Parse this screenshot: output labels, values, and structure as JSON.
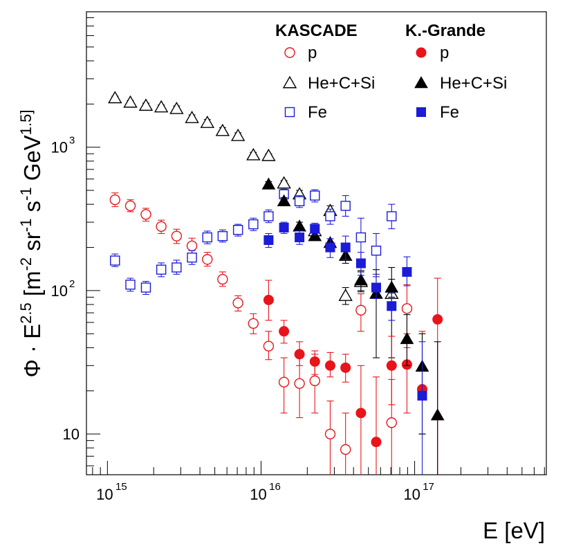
{
  "chart_data": {
    "type": "scatter",
    "title": "",
    "xlabel": "E [eV]",
    "ylabel": "Φ · E^2.5 [m^-2 sr^-1 s^-1 GeV^1.5]",
    "xscale": "log",
    "yscale": "log",
    "xlim": [
      730000000000000.0,
      7.2e+17
    ],
    "ylim": [
      5.2,
      8800
    ],
    "x_ticks": [
      {
        "label": "10",
        "exp": "15"
      },
      {
        "label": "10",
        "exp": "16"
      },
      {
        "label": "10",
        "exp": "17"
      }
    ],
    "y_ticks": [
      {
        "label": "10",
        "exp": ""
      },
      {
        "label": "10",
        "exp": "2"
      },
      {
        "label": "10",
        "exp": "3"
      }
    ],
    "legend_headers": [
      "KASCADE",
      "K.-Grande"
    ],
    "series": [
      {
        "name": "p",
        "experiment": "KASCADE",
        "marker": "circle-open",
        "color": "#e8141a",
        "points": [
          [
            1120000000000000.0,
            430,
            385,
            480
          ],
          [
            1410000000000000.0,
            390,
            355,
            430
          ],
          [
            1780000000000000.0,
            340,
            305,
            375
          ],
          [
            2240000000000000.0,
            280,
            250,
            310
          ],
          [
            2820000000000000.0,
            240,
            213,
            268
          ],
          [
            3550000000000000.0,
            205,
            182,
            232
          ],
          [
            4470000000000000.0,
            165,
            148,
            185
          ],
          [
            5620000000000000.0,
            120,
            107,
            135
          ],
          [
            7080000000000000.0,
            82,
            72,
            92
          ],
          [
            8910000000000000.0,
            59,
            50,
            69
          ],
          [
            1.12e+16,
            41,
            33,
            52
          ],
          [
            1.41e+16,
            23,
            14,
            34
          ],
          [
            1.78e+16,
            22.5,
            13,
            34
          ],
          [
            2.24e+16,
            23.5,
            14,
            36
          ],
          [
            2.82e+16,
            10,
            5.2,
            17
          ],
          [
            3.55e+16,
            7.8,
            5.2,
            14
          ],
          [
            4.47e+16,
            73,
            52,
            95
          ],
          [
            7.08e+16,
            12,
            5.2,
            24
          ],
          [
            8.91e+16,
            75,
            40,
            110
          ]
        ]
      },
      {
        "name": "He+C+Si",
        "experiment": "KASCADE",
        "marker": "triangle-open",
        "color": "#000000",
        "points": [
          [
            1120000000000000.0,
            2200,
            2140,
            2270
          ],
          [
            1410000000000000.0,
            2050,
            1980,
            2120
          ],
          [
            1780000000000000.0,
            1950,
            1880,
            2030
          ],
          [
            2240000000000000.0,
            1900,
            1830,
            1970
          ],
          [
            2820000000000000.0,
            1850,
            1770,
            1940
          ],
          [
            3550000000000000.0,
            1600,
            1530,
            1680
          ],
          [
            4470000000000000.0,
            1480,
            1410,
            1560
          ],
          [
            5620000000000000.0,
            1300,
            1230,
            1370
          ],
          [
            7080000000000000.0,
            1200,
            1150,
            1260
          ],
          [
            8910000000000000.0,
            880,
            845,
            920
          ],
          [
            1.12e+16,
            870,
            840,
            900
          ],
          [
            1.41e+16,
            560,
            535,
            585
          ],
          [
            1.78e+16,
            470,
            440,
            500
          ],
          [
            2.24e+16,
            260,
            238,
            285
          ],
          [
            2.82e+16,
            360,
            330,
            390
          ],
          [
            3.55e+16,
            92,
            80,
            105
          ],
          [
            4.47e+16,
            115,
            98,
            135
          ],
          [
            7.08e+16,
            95,
            34,
            145
          ]
        ]
      },
      {
        "name": "Fe",
        "experiment": "KASCADE",
        "marker": "square-open",
        "color": "#1b1bd8",
        "points": [
          [
            1120000000000000.0,
            162,
            147,
            180
          ],
          [
            1410000000000000.0,
            110,
            99,
            122
          ],
          [
            1780000000000000.0,
            105,
            94,
            116
          ],
          [
            2240000000000000.0,
            140,
            125,
            156
          ],
          [
            2820000000000000.0,
            145,
            130,
            163
          ],
          [
            3550000000000000.0,
            170,
            152,
            190
          ],
          [
            4470000000000000.0,
            235,
            212,
            260
          ],
          [
            5620000000000000.0,
            240,
            218,
            265
          ],
          [
            7080000000000000.0,
            265,
            240,
            290
          ],
          [
            8910000000000000.0,
            290,
            262,
            320
          ],
          [
            1.12e+16,
            330,
            298,
            365
          ],
          [
            1.41e+16,
            470,
            430,
            510
          ],
          [
            1.78e+16,
            420,
            380,
            460
          ],
          [
            2.24e+16,
            460,
            415,
            505
          ],
          [
            2.82e+16,
            330,
            290,
            370
          ],
          [
            3.55e+16,
            390,
            330,
            460
          ],
          [
            4.47e+16,
            235,
            150,
            320
          ],
          [
            5.62e+16,
            190,
            130,
            250
          ],
          [
            7.08e+16,
            330,
            270,
            400
          ]
        ]
      },
      {
        "name": "p",
        "experiment": "K.-Grande",
        "marker": "circle-filled",
        "color": "#e8141a",
        "points": [
          [
            1.12e+16,
            86,
            62,
            118
          ],
          [
            1.41e+16,
            52,
            43,
            62
          ],
          [
            1.78e+16,
            36,
            30,
            44
          ],
          [
            2.24e+16,
            32,
            26,
            38
          ],
          [
            2.82e+16,
            30,
            25,
            37
          ],
          [
            3.55e+16,
            29,
            23,
            36
          ],
          [
            4.47e+16,
            14,
            5.2,
            30
          ],
          [
            5.62e+16,
            8.8,
            5.2,
            25
          ],
          [
            7.08e+16,
            30,
            16,
            48
          ],
          [
            8.91e+16,
            30.5,
            14,
            50
          ],
          [
            1.12e+17,
            20.5,
            10,
            52
          ],
          [
            1.41e+17,
            63,
            5.2,
            122
          ]
        ]
      },
      {
        "name": "He+C+Si",
        "experiment": "K.-Grande",
        "marker": "triangle-filled",
        "color": "#000000",
        "points": [
          [
            1.12e+16,
            550,
            525,
            575
          ],
          [
            1.41e+16,
            420,
            400,
            445
          ],
          [
            1.78e+16,
            280,
            265,
            300
          ],
          [
            2.24e+16,
            240,
            225,
            255
          ],
          [
            2.82e+16,
            215,
            200,
            230
          ],
          [
            3.55e+16,
            175,
            155,
            195
          ],
          [
            4.47e+16,
            118,
            100,
            138
          ],
          [
            5.62e+16,
            95,
            34,
            140
          ],
          [
            7.08e+16,
            105,
            90,
            120
          ],
          [
            8.91e+16,
            46,
            30,
            68
          ],
          [
            1.12e+17,
            29.5,
            10,
            50
          ],
          [
            1.41e+17,
            13.5,
            5.2,
            44
          ]
        ]
      },
      {
        "name": "Fe",
        "experiment": "K.-Grande",
        "marker": "square-filled",
        "color": "#1b1bd8",
        "points": [
          [
            1.12e+16,
            225,
            200,
            250
          ],
          [
            1.41e+16,
            275,
            250,
            300
          ],
          [
            1.78e+16,
            235,
            210,
            260
          ],
          [
            2.24e+16,
            270,
            245,
            295
          ],
          [
            2.82e+16,
            200,
            170,
            230
          ],
          [
            3.55e+16,
            200,
            165,
            240
          ],
          [
            4.47e+16,
            155,
            128,
            185
          ],
          [
            5.62e+16,
            105,
            88,
            125
          ],
          [
            7.08e+16,
            78,
            62,
            96
          ],
          [
            8.91e+16,
            135,
            108,
            172
          ],
          [
            1.12e+17,
            18.5,
            5.2,
            44
          ]
        ]
      }
    ]
  }
}
